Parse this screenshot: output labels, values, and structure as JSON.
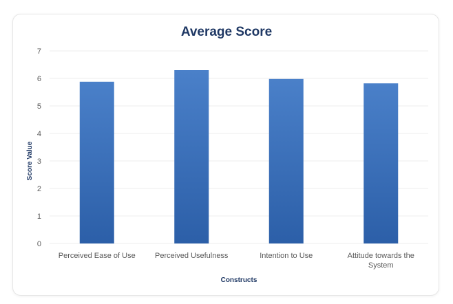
{
  "chart_data": {
    "type": "bar",
    "title": "Average Score",
    "xlabel": "Constructs",
    "ylabel": "Score Value",
    "categories": [
      [
        "Perceived Ease of Use"
      ],
      [
        "Perceived Usefulness"
      ],
      [
        "Intention to Use"
      ],
      [
        "Attitude towards the",
        "System"
      ]
    ],
    "values": [
      5.88,
      6.3,
      5.98,
      5.82
    ],
    "ylim": [
      0,
      7
    ],
    "yticks": [
      0,
      1,
      2,
      3,
      4,
      5,
      6,
      7
    ],
    "grid": true,
    "legend": "none"
  },
  "colors": {
    "bar_top": "#4a80c9",
    "bar_bottom": "#2c5fa8",
    "title": "#1f3864",
    "axis_text": "#595959",
    "grid": "#ececec"
  }
}
